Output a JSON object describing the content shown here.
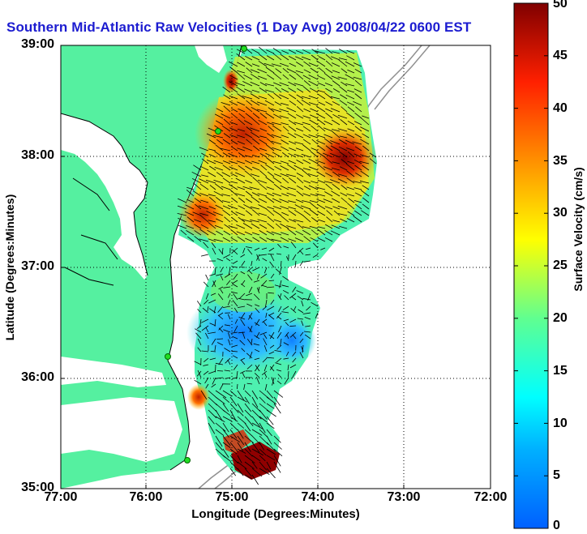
{
  "title": "Southern Mid-Atlantic Raw Velocities (1 Day Avg) 2008/04/22 0600 EST",
  "axes": {
    "xlabel": "Longitude (Degrees:Minutes)",
    "ylabel": "Latitude (Degrees:Minutes)",
    "xticks": [
      "77:00",
      "76:00",
      "75:00",
      "74:00",
      "73:00",
      "72:00"
    ],
    "yticks": [
      "39:00",
      "38:00",
      "37:00",
      "36:00",
      "35:00"
    ]
  },
  "colorbar": {
    "label": "Surface Velocity (cm/s)",
    "ticks": [
      "50",
      "45",
      "40",
      "35",
      "30",
      "25",
      "20",
      "15",
      "10",
      "5",
      "0"
    ],
    "colors": [
      "#0000ff",
      "#00b0ff",
      "#00ffff",
      "#80ff80",
      "#ffff00",
      "#ff8000",
      "#ff0000",
      "#800000"
    ]
  },
  "colors": {
    "land": "#55f0a0",
    "grid": "#000000",
    "title": "#1c1cd0",
    "stations": "#22dd22"
  }
}
